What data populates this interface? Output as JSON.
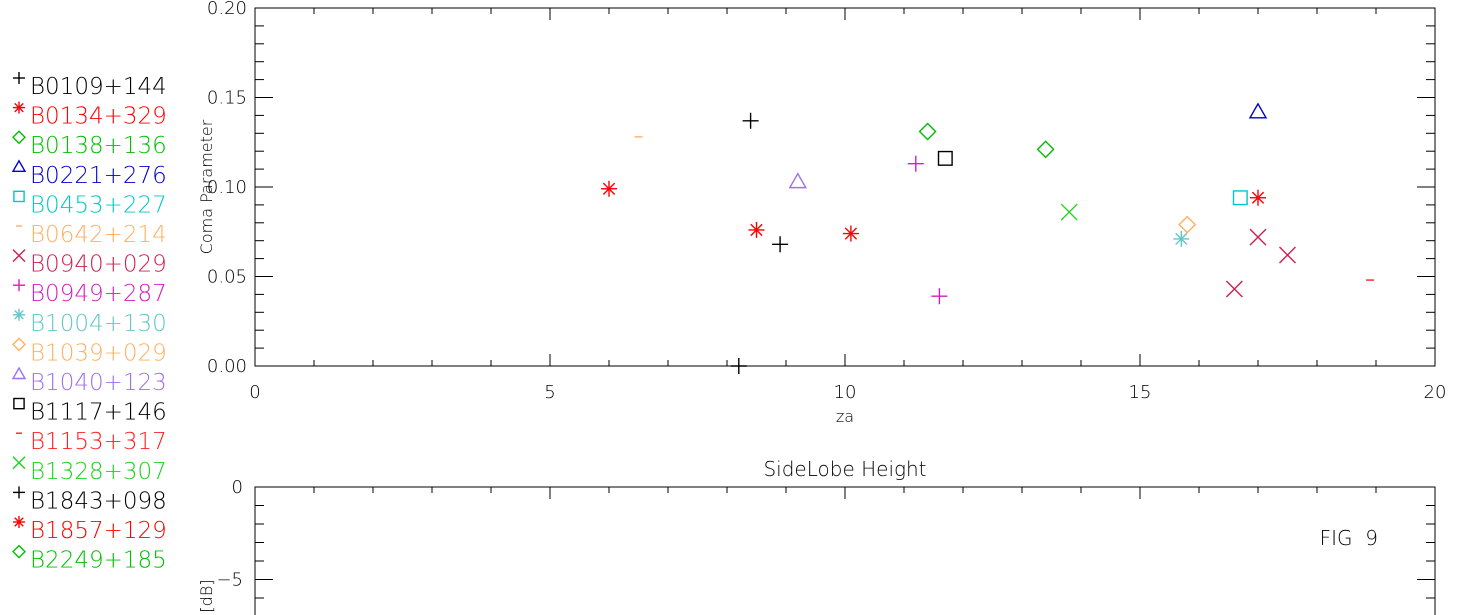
{
  "chart_data": [
    {
      "type": "scatter",
      "title": "",
      "xlabel": "za",
      "ylabel": "Coma Parameter",
      "xlim": [
        0,
        20
      ],
      "ylim": [
        0,
        0.2
      ],
      "xticks": [
        "0",
        "5",
        "10",
        "15",
        "20"
      ],
      "yticks": [
        "0.00",
        "0.05",
        "0.10",
        "0.15",
        "0.20"
      ],
      "legend_position": "left",
      "series": [
        {
          "name": "B0109+144",
          "color": "#000000",
          "symbol": "plus",
          "points": [
            [
              8.4,
              0.137
            ],
            [
              8.9,
              0.068
            ]
          ]
        },
        {
          "name": "B0134+329",
          "color": "#ff0000",
          "symbol": "asterisk",
          "points": [
            [
              6.0,
              0.099
            ],
            [
              8.5,
              0.076
            ],
            [
              10.1,
              0.074
            ],
            [
              17.0,
              0.094
            ]
          ]
        },
        {
          "name": "B0138+136",
          "color": "#00c000",
          "symbol": "diamond",
          "points": [
            [
              11.4,
              0.131
            ],
            [
              13.4,
              0.121
            ]
          ]
        },
        {
          "name": "B0221+276",
          "color": "#0000cc",
          "symbol": "triangle",
          "points": [
            [
              17.0,
              0.142
            ]
          ]
        },
        {
          "name": "B0453+227",
          "color": "#00c8c8",
          "symbol": "square",
          "points": [
            [
              16.7,
              0.094
            ]
          ]
        },
        {
          "name": "B0642+214",
          "color": "#ffb060",
          "symbol": "dash",
          "points": [
            [
              6.5,
              0.128
            ]
          ]
        },
        {
          "name": "B0940+029",
          "color": "#d02050",
          "symbol": "cross",
          "points": [
            [
              16.6,
              0.043
            ],
            [
              17.0,
              0.072
            ],
            [
              17.5,
              0.062
            ]
          ]
        },
        {
          "name": "B0949+287",
          "color": "#d020c0",
          "symbol": "plus",
          "points": [
            [
              11.2,
              0.113
            ],
            [
              11.6,
              0.039
            ]
          ]
        },
        {
          "name": "B1004+130",
          "color": "#60c8c8",
          "symbol": "asterisk",
          "points": [
            [
              15.7,
              0.071
            ]
          ]
        },
        {
          "name": "B1039+029",
          "color": "#ffb060",
          "symbol": "diamond",
          "points": [
            [
              15.8,
              0.079
            ]
          ]
        },
        {
          "name": "B1040+123",
          "color": "#a070f0",
          "symbol": "triangle",
          "points": [
            [
              9.2,
              0.103
            ]
          ]
        },
        {
          "name": "B1117+146",
          "color": "#000000",
          "symbol": "square",
          "points": [
            [
              11.7,
              0.116
            ]
          ]
        },
        {
          "name": "B1153+317",
          "color": "#ff2020",
          "symbol": "dash",
          "points": [
            [
              18.9,
              0.048
            ]
          ]
        },
        {
          "name": "B1328+307",
          "color": "#20d020",
          "symbol": "cross",
          "points": [
            [
              13.8,
              0.086
            ]
          ]
        },
        {
          "name": "B1843+098",
          "color": "#000000",
          "symbol": "plus",
          "points": [
            [
              8.2,
              0.0
            ]
          ]
        },
        {
          "name": "B1857+129",
          "color": "#ff0000",
          "symbol": "asterisk",
          "points": []
        },
        {
          "name": "B2249+185",
          "color": "#00c000",
          "symbol": "diamond",
          "points": []
        }
      ]
    },
    {
      "type": "scatter",
      "title": "SideLobe Height",
      "xlabel": "",
      "ylabel": "[dB]",
      "xlim": [
        0,
        20
      ],
      "ylim_visible": [
        -6,
        0
      ],
      "yticks": [
        "0",
        "-5"
      ],
      "annotation": "FIG  9",
      "series": []
    }
  ]
}
